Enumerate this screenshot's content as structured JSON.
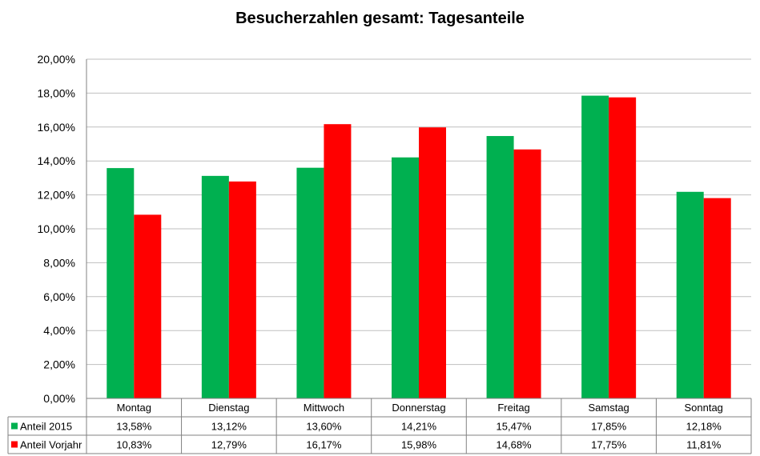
{
  "chart_data": {
    "type": "bar",
    "title": "Besucherzahlen gesamt: Tagesanteile",
    "categories": [
      "Montag",
      "Dienstag",
      "Mittwoch",
      "Donnerstag",
      "Freitag",
      "Samstag",
      "Sonntag"
    ],
    "series": [
      {
        "name": "Anteil 2015",
        "color": "#00b050",
        "values": [
          13.58,
          13.12,
          13.6,
          14.21,
          15.47,
          17.85,
          12.18
        ],
        "labels": [
          "13,58%",
          "13,12%",
          "13,60%",
          "14,21%",
          "15,47%",
          "17,85%",
          "12,18%"
        ]
      },
      {
        "name": "Anteil Vorjahr",
        "color": "#ff0000",
        "values": [
          10.83,
          12.79,
          16.17,
          15.98,
          14.68,
          17.75,
          11.81
        ],
        "labels": [
          "10,83%",
          "12,79%",
          "16,17%",
          "15,98%",
          "14,68%",
          "17,75%",
          "11,81%"
        ]
      }
    ],
    "ylim": [
      0,
      20
    ],
    "yticks": [
      0,
      2,
      4,
      6,
      8,
      10,
      12,
      14,
      16,
      18,
      20
    ],
    "ytick_labels": [
      "0,00%",
      "2,00%",
      "4,00%",
      "6,00%",
      "8,00%",
      "10,00%",
      "12,00%",
      "14,00%",
      "16,00%",
      "18,00%",
      "20,00%"
    ],
    "grid": true,
    "legend": "data-table"
  }
}
